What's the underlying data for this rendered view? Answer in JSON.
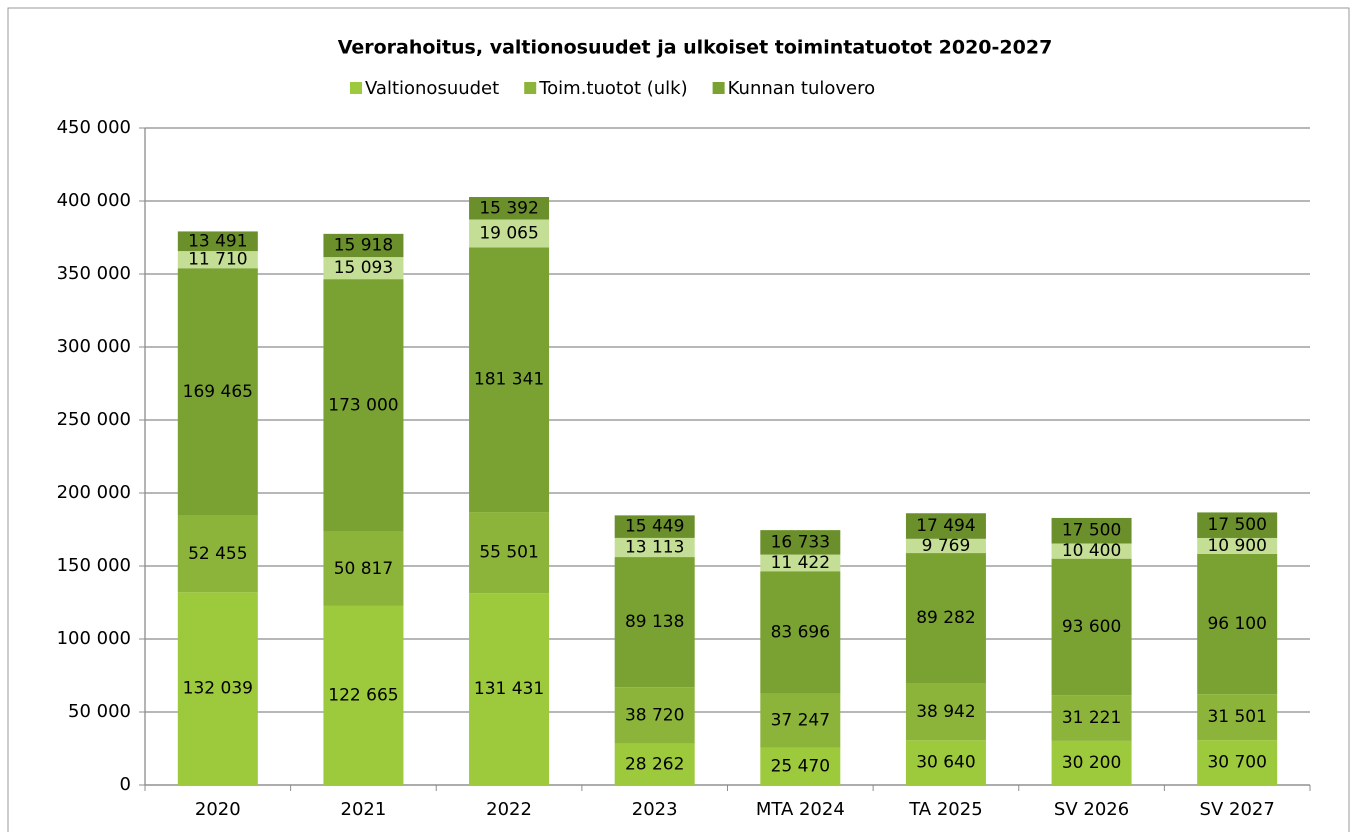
{
  "chart_data": {
    "type": "stacked_bar",
    "title": "Verorahoitus, valtionosuudet ja ulkoiset toimintatuotot 2020-2027",
    "categories": [
      "2020",
      "2021",
      "2022",
      "2023",
      "MTA 2024",
      "TA 2025",
      "SV 2026",
      "SV 2027"
    ],
    "series": [
      {
        "name": "Valtionosuudet",
        "color": "#9dc93c",
        "values": [
          132039,
          122665,
          131431,
          28262,
          25470,
          30640,
          30200,
          30700
        ],
        "value_labels": [
          "132 039",
          "122 665",
          "131 431",
          "28 262",
          "25 470",
          "30 640",
          "30 200",
          "30 700"
        ]
      },
      {
        "name": "Toim.tuotot (ulk)",
        "color": "#8cb43a",
        "values": [
          52455,
          50817,
          55501,
          38720,
          37247,
          38942,
          31221,
          31501
        ],
        "value_labels": [
          "52 455",
          "50 817",
          "55 501",
          "38 720",
          "37 247",
          "38 942",
          "31 221",
          "31 501"
        ]
      },
      {
        "name": "Kunnan tulovero",
        "color": "#7aa233",
        "values": [
          169465,
          173000,
          181341,
          89138,
          83696,
          89282,
          93600,
          96100
        ],
        "value_labels": [
          "169 465",
          "173 000",
          "181 341",
          "89 138",
          "83 696",
          "89 282",
          "93 600",
          "96 100"
        ]
      },
      {
        "color": "#c4de95",
        "values": [
          11710,
          15093,
          19065,
          13113,
          11422,
          9769,
          10400,
          10900
        ],
        "value_labels": [
          "11 710",
          "15 093",
          "19 065",
          "13 113",
          "11 422",
          "9 769",
          "10 400",
          "10 900"
        ]
      },
      {
        "color": "#6b8f2b",
        "values": [
          13491,
          15918,
          15392,
          15449,
          16733,
          17494,
          17500,
          17500
        ],
        "value_labels": [
          "13 491",
          "15 918",
          "15 392",
          "15 449",
          "16 733",
          "17 494",
          "17 500",
          "17 500"
        ]
      }
    ],
    "ylim": [
      0,
      450000
    ],
    "yticks": [
      0,
      {
        "value": 50000,
        "label": "50 000"
      },
      {
        "value": 100000,
        "label": "100 000"
      },
      {
        "value": 150000,
        "label": "150 000"
      },
      {
        "value": 200000,
        "label": "200 000"
      },
      {
        "value": 250000,
        "label": "250 000"
      },
      {
        "value": 300000,
        "label": "300 000"
      },
      {
        "value": 350000,
        "label": "350 000"
      },
      {
        "value": 400000,
        "label": "400 000"
      },
      {
        "value": 450000,
        "label": "450 000"
      }
    ],
    "grid": true
  }
}
